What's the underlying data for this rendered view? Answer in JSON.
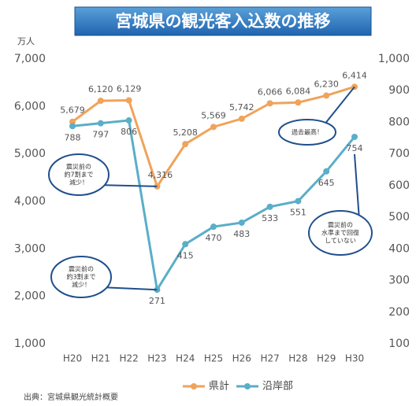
{
  "chart_data": {
    "type": "line",
    "title": "宮城県の観光客入込数の推移",
    "unit_label": "万人",
    "source": "出典：宮城県観光統計概要",
    "categories": [
      "H20",
      "H21",
      "H22",
      "H23",
      "H24",
      "H25",
      "H26",
      "H27",
      "H28",
      "H29",
      "H30"
    ],
    "series": [
      {
        "name": "県計",
        "color": "#f0a35a",
        "axis": "y",
        "values": [
          5679,
          6120,
          6129,
          4316,
          5208,
          5569,
          5742,
          6066,
          6084,
          6230,
          6414
        ],
        "value_labels": [
          "5,679",
          "6,120",
          "6,129",
          "4,316",
          "5,208",
          "5,569",
          "5,742",
          "6,066",
          "6,084",
          "6,230",
          "6,414"
        ]
      },
      {
        "name": "沿岸部",
        "color": "#5aaec8",
        "axis": "y2",
        "values": [
          788,
          797,
          806,
          271,
          415,
          470,
          483,
          533,
          551,
          645,
          754
        ]
      }
    ],
    "ylim": [
      1000,
      7000
    ],
    "yticks": [
      {
        "value": 1000,
        "label": "1,000"
      },
      {
        "value": 2000,
        "label": "2,000"
      },
      {
        "value": 3000,
        "label": "3,000"
      },
      {
        "value": 4000,
        "label": "4,000"
      },
      {
        "value": 5000,
        "label": "5,000"
      },
      {
        "value": 6000,
        "label": "6,000"
      },
      {
        "value": 7000,
        "label": "7,000"
      }
    ],
    "y2lim": [
      100,
      1000
    ],
    "y2ticks": [
      100,
      200,
      300,
      400,
      500,
      600,
      700,
      800,
      900,
      {
        "value": 1000,
        "label": "1,000"
      }
    ],
    "grid": false,
    "legend": "bottom",
    "annotations": [
      {
        "lines": [
          "震災前の",
          "約7割まで",
          "減少！"
        ]
      },
      {
        "lines": [
          "震災前の",
          "約3割まで",
          "減少！"
        ]
      },
      {
        "lines": [
          "過去最高！"
        ]
      },
      {
        "lines": [
          "震災前の",
          "水準まで回復",
          "していない"
        ]
      }
    ]
  }
}
